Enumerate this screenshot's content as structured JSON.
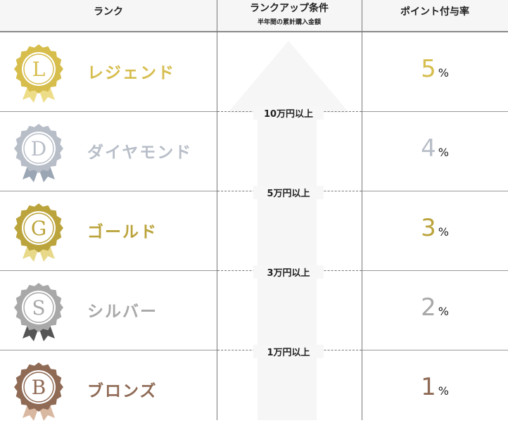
{
  "header": {
    "rank": "ランク",
    "condition": "ランクアップ条件",
    "condition_sub": "半年間の累計購入金額",
    "rate": "ポイント付与率"
  },
  "ranks": [
    {
      "letter": "L",
      "name": "レジェンド",
      "rate": "5",
      "unit": "%",
      "color": "#d6bd4c",
      "ribbon": "#eedd88"
    },
    {
      "letter": "D",
      "name": "ダイヤモンド",
      "rate": "4",
      "unit": "%",
      "color": "#b8bec8",
      "ribbon": "#9aa6b4"
    },
    {
      "letter": "G",
      "name": "ゴールド",
      "rate": "3",
      "unit": "%",
      "color": "#bba43c",
      "ribbon": "#e8d98a"
    },
    {
      "letter": "S",
      "name": "シルバー",
      "rate": "2",
      "unit": "%",
      "color": "#a8a8a8",
      "ribbon": "#555555"
    },
    {
      "letter": "B",
      "name": "ブロンズ",
      "rate": "1",
      "unit": "%",
      "color": "#8f6a55",
      "ribbon": "#d8b8a0"
    }
  ],
  "conditions": [
    "10万円以上",
    "5万円以上",
    "3万円以上",
    "1万円以上"
  ],
  "arrow_color": "#f6f6f6"
}
